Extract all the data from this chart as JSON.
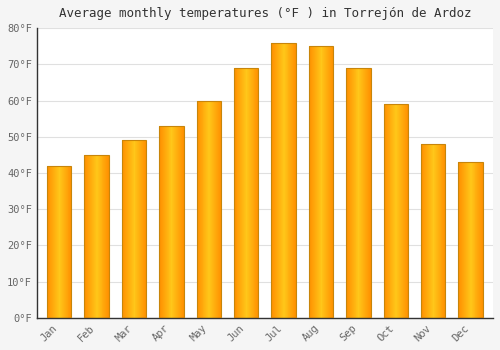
{
  "title": "Average monthly temperatures (°F ) in Torrejón de Ardoz",
  "months": [
    "Jan",
    "Feb",
    "Mar",
    "Apr",
    "May",
    "Jun",
    "Jul",
    "Aug",
    "Sep",
    "Oct",
    "Nov",
    "Dec"
  ],
  "values": [
    42,
    45,
    49,
    53,
    60,
    69,
    76,
    75,
    69,
    59,
    48,
    43
  ],
  "ylim": [
    0,
    80
  ],
  "yticks": [
    0,
    10,
    20,
    30,
    40,
    50,
    60,
    70,
    80
  ],
  "ytick_labels": [
    "0°F",
    "10°F",
    "20°F",
    "30°F",
    "40°F",
    "50°F",
    "60°F",
    "70°F",
    "80°F"
  ],
  "background_color": "#f5f5f5",
  "plot_bg_color": "#ffffff",
  "grid_color": "#e0e0e0",
  "title_fontsize": 9,
  "tick_fontsize": 7.5,
  "bar_color_center": "#FFD040",
  "bar_color_edge": "#F5A000",
  "bar_border_color": "#C8850A",
  "tick_color": "#666666",
  "axis_color": "#333333"
}
